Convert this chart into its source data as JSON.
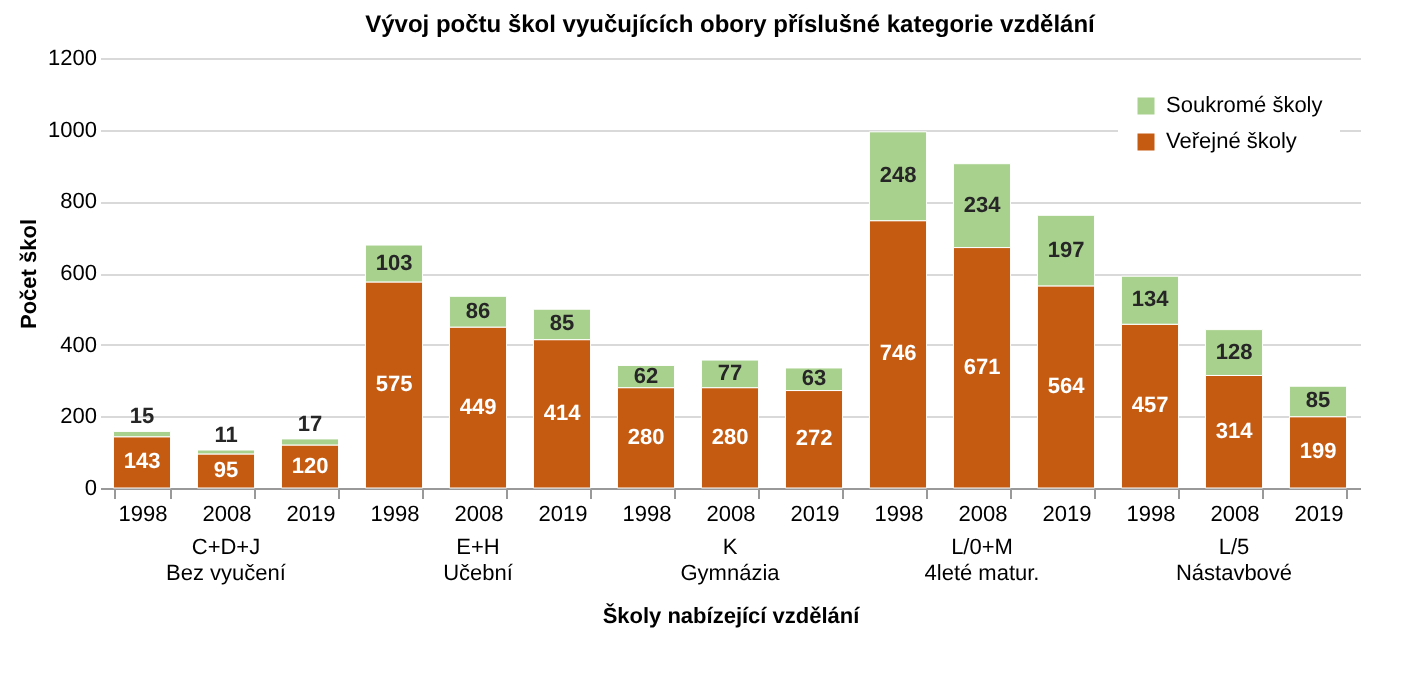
{
  "chart_data": {
    "type": "bar",
    "title": "Vývoj počtu škol vyučujících obory příslušné kategorie vzdělání",
    "xlabel": "Školy nabízející vzdělání",
    "ylabel": "Počet škol",
    "categories": [
      "1998",
      "2008",
      "2019",
      "1998",
      "2008",
      "2019",
      "1998",
      "2008",
      "2019",
      "1998",
      "2008",
      "2019",
      "1998",
      "2008",
      "2019"
    ],
    "annotations": [
      "C+D+J\nBez vyučení",
      "E+H\nUčební",
      "K\nGymnázia",
      "L/0+M\n4leté matur.",
      "L/5\nNástavbové"
    ],
    "stacked": true,
    "series": [
      {
        "name": "Veřejné školy",
        "color": "#c55a11",
        "values": [
          143,
          95,
          120,
          575,
          449,
          414,
          280,
          280,
          272,
          746,
          671,
          564,
          457,
          314,
          199
        ]
      },
      {
        "name": "Soukromé školy",
        "color": "#a9d18e",
        "values": [
          15,
          11,
          17,
          103,
          86,
          85,
          62,
          77,
          63,
          248,
          234,
          197,
          134,
          128,
          85
        ]
      }
    ],
    "ylim": [
      0,
      1200
    ],
    "yticks": [
      0,
      200,
      400,
      600,
      800,
      1000,
      1200
    ],
    "grid": "y",
    "legend": "top right",
    "data_labels": true
  }
}
